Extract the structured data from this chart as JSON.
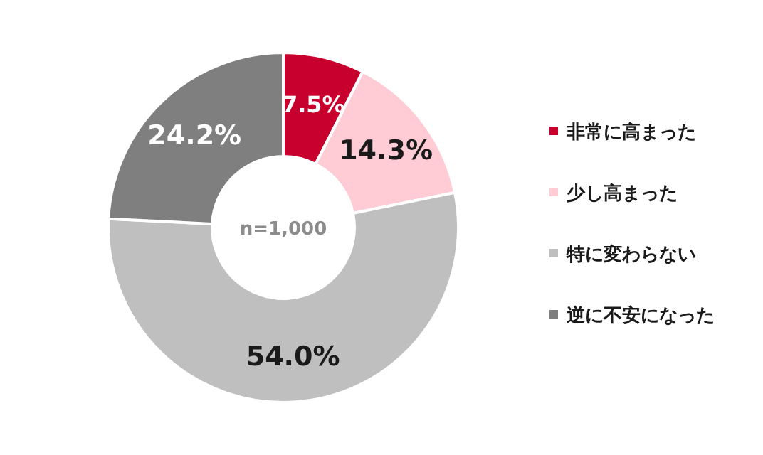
{
  "chart_data": {
    "type": "donut",
    "categories": [
      "非常に高まった",
      "少し高まった",
      "特に変わらない",
      "逆に不安になった"
    ],
    "values": [
      7.5,
      14.3,
      54.0,
      24.2
    ],
    "value_labels": [
      "7.5%",
      "14.3%",
      "54.0%",
      "24.2%"
    ],
    "colors": [
      "#c8002d",
      "#ffccd5",
      "#bfbfbf",
      "#7f7f7f"
    ],
    "annotations": [
      "n=1,000"
    ],
    "legend": "right"
  }
}
